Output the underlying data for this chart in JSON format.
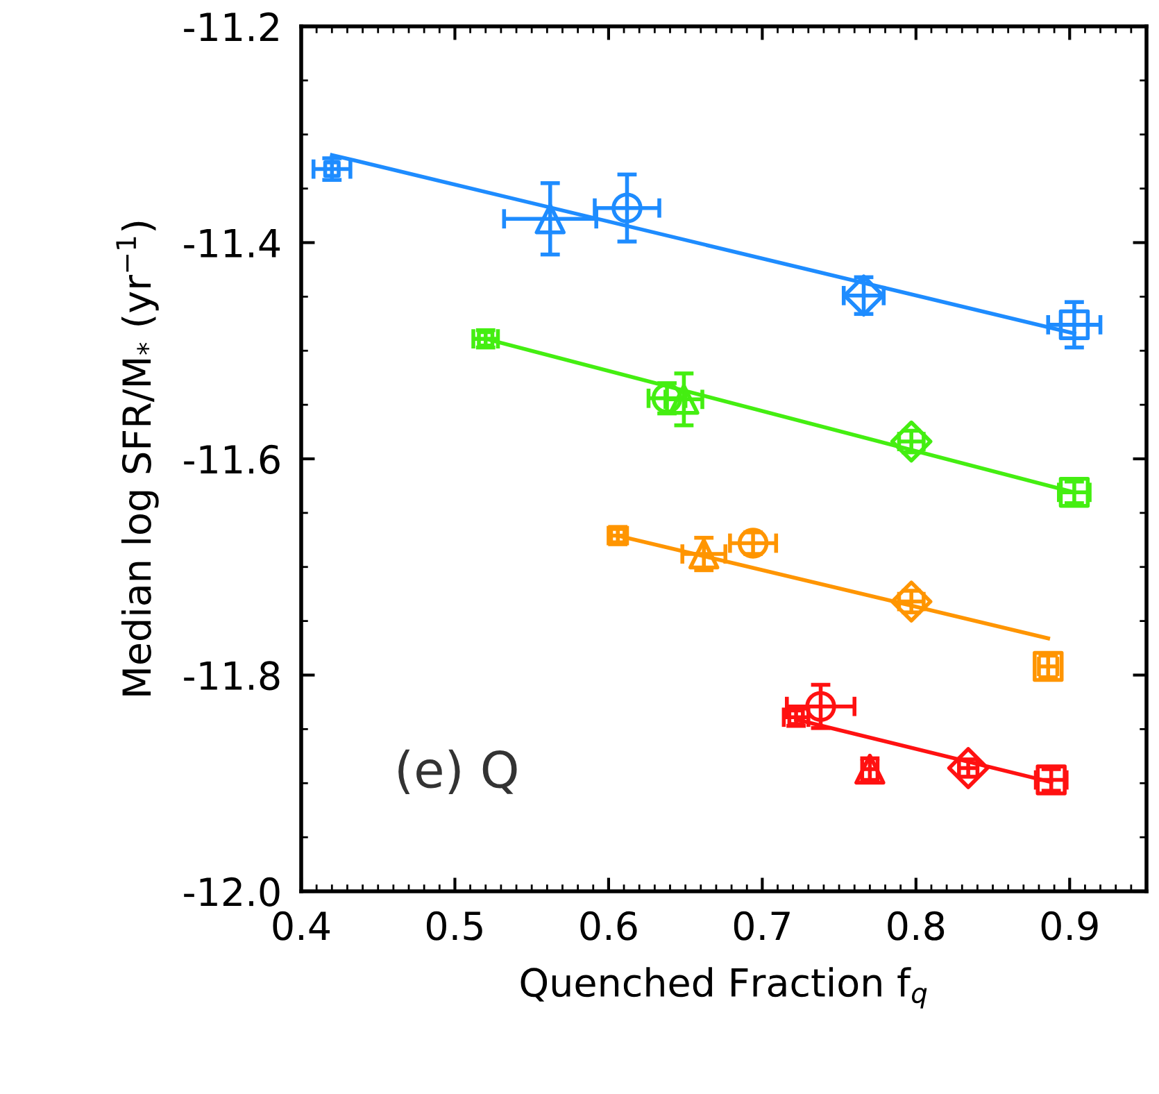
{
  "chart_data": {
    "type": "scatter",
    "xlabel": "Quenched Fraction f$_{q}$",
    "ylabel": "Median log SFR/M$_{*}$ (yr$^{−1}$)",
    "annotations": [
      "(e) Q"
    ],
    "xlim": [
      0.4,
      0.95
    ],
    "xticks": [
      0.4,
      0.5,
      0.6,
      0.7,
      0.8,
      0.9
    ],
    "ylim": [
      -12.0,
      -11.2
    ],
    "yticks": [
      {
        "value": -12.0,
        "label": "-12.0"
      },
      -11.8,
      -11.6,
      -11.4,
      -11.2
    ],
    "grid": false,
    "series": [
      {
        "type": "line",
        "color": "#1e8cff",
        "x": [
          0.42,
          0.903
        ],
        "values": [
          -11.319,
          -11.484
        ]
      },
      {
        "type": "line",
        "color": "#44ee11",
        "x": [
          0.52,
          0.903
        ],
        "values": [
          -11.489,
          -11.631
        ]
      },
      {
        "type": "line",
        "color": "#ff9500",
        "x": [
          0.606,
          0.886
        ],
        "values": [
          -11.671,
          -11.766
        ]
      },
      {
        "type": "line",
        "color": "#ff1111",
        "x": [
          0.722,
          0.888
        ],
        "values": [
          -11.841,
          -11.899
        ]
      },
      {
        "marker": "square",
        "colors": [
          "#1e8cff",
          "#44ee11",
          "#ff9500",
          "#ff1111"
        ],
        "x": [
          0.42,
          0.52,
          0.606,
          0.722
        ],
        "values": [
          -11.332,
          -11.489,
          -11.671,
          -11.839
        ],
        "errors": [
          0.01,
          0.008,
          0.008,
          0.008
        ],
        "xerrors": [
          0.012,
          0.008,
          0.006,
          0.008
        ]
      },
      {
        "marker": "triangle",
        "colors": [
          "#1e8cff",
          "#44ee11",
          "#ff9500",
          "#ff1111"
        ],
        "x": [
          0.562,
          0.649,
          0.662,
          0.77
        ],
        "values": [
          -11.378,
          -11.545,
          -11.688,
          -11.887
        ],
        "errors": [
          0.033,
          0.024,
          0.015,
          0.01
        ],
        "xerrors": [
          0.03,
          0.012,
          0.014,
          0.005
        ]
      },
      {
        "marker": "circle",
        "colors": [
          "#1e8cff",
          "#44ee11",
          "#ff9500",
          "#ff1111"
        ],
        "x": [
          0.612,
          0.638,
          0.694,
          0.738
        ],
        "values": [
          -11.368,
          -11.544,
          -11.678,
          -11.829
        ],
        "errors": [
          0.031,
          0.014,
          0.01,
          0.02
        ],
        "xerrors": [
          0.021,
          0.012,
          0.015,
          0.022
        ]
      },
      {
        "marker": "diamond",
        "colors": [
          "#1e8cff",
          "#44ee11",
          "#ff9500",
          "#ff1111"
        ],
        "x": [
          0.766,
          0.797,
          0.797,
          0.834
        ],
        "values": [
          -11.449,
          -11.584,
          -11.732,
          -11.886
        ],
        "errors": [
          0.017,
          0.01,
          0.01,
          0.008
        ],
        "xerrors": [
          0.013,
          0.008,
          0.008,
          0.006
        ]
      },
      {
        "marker": "square",
        "colors": [
          "#1e8cff",
          "#44ee11",
          "#ff9500",
          "#ff1111"
        ],
        "x": [
          0.903,
          0.903,
          0.886,
          0.888
        ],
        "values": [
          -11.476,
          -11.631,
          -11.792,
          -11.897
        ],
        "errors": [
          0.021,
          0.01,
          0.01,
          0.01
        ],
        "xerrors": [
          0.017,
          0.01,
          0.006,
          0.01
        ]
      }
    ]
  }
}
